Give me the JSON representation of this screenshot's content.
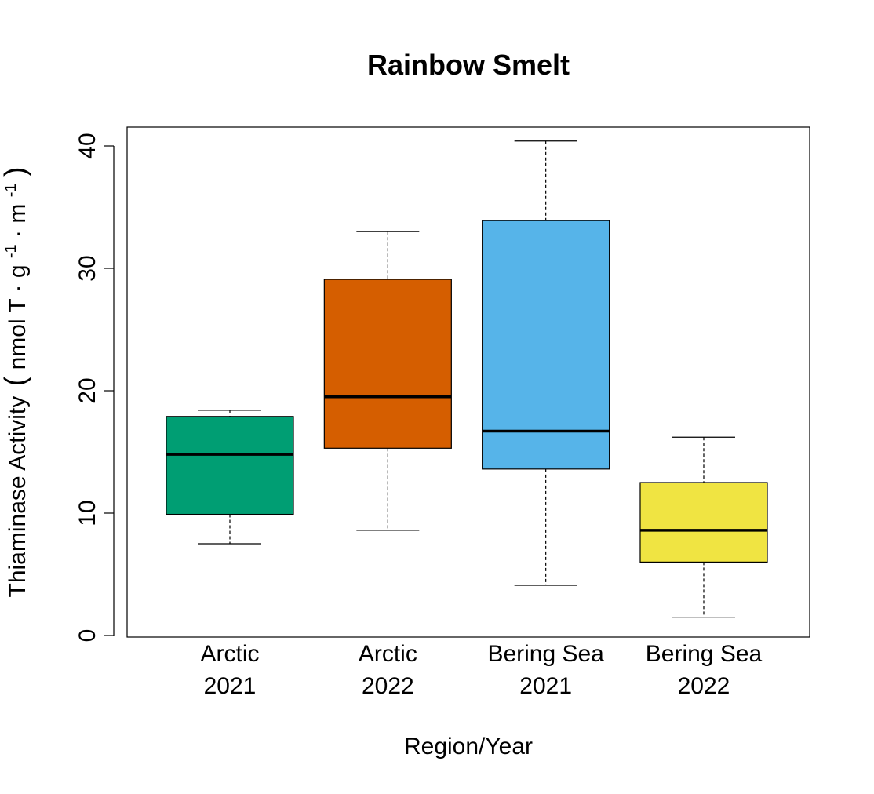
{
  "chart_data": {
    "type": "boxplot",
    "title": "Rainbow Smelt",
    "xlabel": "Region/Year",
    "ylabel": {
      "main": "Thiaminase Activity",
      "unit_base": "nmol T · g",
      "unit_sup1": "-1",
      "unit_mid": " · m",
      "unit_sup2": "-1"
    },
    "ylim": [
      0,
      42
    ],
    "yticks": [
      "0",
      "10",
      "20",
      "30",
      "40"
    ],
    "categories": [
      {
        "line1": "Arctic",
        "line2": "2021"
      },
      {
        "line1": "Arctic",
        "line2": "2022"
      },
      {
        "line1": "Bering Sea",
        "line2": "2021"
      },
      {
        "line1": "Bering Sea",
        "line2": "2022"
      }
    ],
    "boxes": [
      {
        "min": 7.5,
        "q1": 9.9,
        "median": 14.8,
        "q3": 17.9,
        "max": 18.4,
        "color": "#009E73"
      },
      {
        "min": 8.6,
        "q1": 15.3,
        "median": 19.5,
        "q3": 29.1,
        "max": 33.0,
        "color": "#D55E00"
      },
      {
        "min": 4.1,
        "q1": 13.6,
        "median": 16.7,
        "q3": 33.9,
        "max": 40.4,
        "color": "#56B4E9"
      },
      {
        "min": 1.5,
        "q1": 6.0,
        "median": 8.6,
        "q3": 12.5,
        "max": 16.2,
        "color": "#F0E442"
      }
    ],
    "grid": false,
    "legend": "none"
  }
}
